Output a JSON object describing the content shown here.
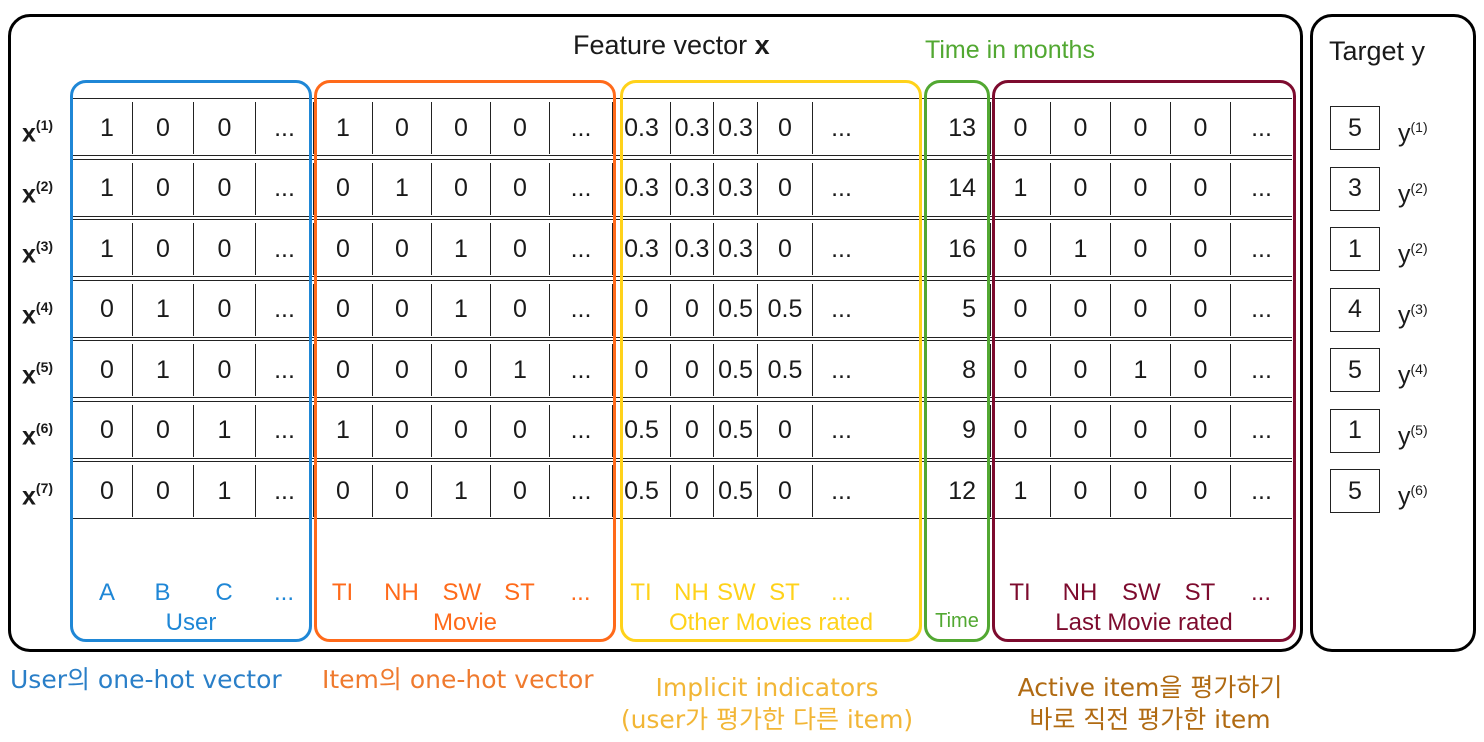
{
  "header": {
    "feature_title": "Feature vector",
    "feature_symbol": "x",
    "time_title": "Time in months",
    "target_title": "Target y"
  },
  "colors": {
    "user": "#1f87d6",
    "movie": "#ff6a1a",
    "other": "#ffd21a",
    "time": "#52a832",
    "last": "#7d0b2e",
    "caption_user": "#2a7fc8",
    "caption_item": "#ef7a2e",
    "caption_implicit": "#f2b636",
    "caption_active": "#b06a12"
  },
  "rows": [
    {
      "label": "x",
      "sup": "(1)",
      "user": [
        "1",
        "0",
        "0",
        "..."
      ],
      "movie": [
        "1",
        "0",
        "0",
        "0",
        "..."
      ],
      "other": [
        "0.3",
        "0.3",
        "0.3",
        "0",
        "..."
      ],
      "time": "13",
      "last": [
        "0",
        "0",
        "0",
        "0",
        "..."
      ],
      "target": "5",
      "ylabel": "y",
      "ysup": "(1)"
    },
    {
      "label": "x",
      "sup": "(2)",
      "user": [
        "1",
        "0",
        "0",
        "..."
      ],
      "movie": [
        "0",
        "1",
        "0",
        "0",
        "..."
      ],
      "other": [
        "0.3",
        "0.3",
        "0.3",
        "0",
        "..."
      ],
      "time": "14",
      "last": [
        "1",
        "0",
        "0",
        "0",
        "..."
      ],
      "target": "3",
      "ylabel": "y",
      "ysup": "(2)"
    },
    {
      "label": "x",
      "sup": "(3)",
      "user": [
        "1",
        "0",
        "0",
        "..."
      ],
      "movie": [
        "0",
        "0",
        "1",
        "0",
        "..."
      ],
      "other": [
        "0.3",
        "0.3",
        "0.3",
        "0",
        "..."
      ],
      "time": "16",
      "last": [
        "0",
        "1",
        "0",
        "0",
        "..."
      ],
      "target": "1",
      "ylabel": "y",
      "ysup": "(2)"
    },
    {
      "label": "x",
      "sup": "(4)",
      "user": [
        "0",
        "1",
        "0",
        "..."
      ],
      "movie": [
        "0",
        "0",
        "1",
        "0",
        "..."
      ],
      "other": [
        "0",
        "0",
        "0.5",
        "0.5",
        "..."
      ],
      "time": "5",
      "last": [
        "0",
        "0",
        "0",
        "0",
        "..."
      ],
      "target": "4",
      "ylabel": "y",
      "ysup": "(3)"
    },
    {
      "label": "x",
      "sup": "(5)",
      "user": [
        "0",
        "1",
        "0",
        "..."
      ],
      "movie": [
        "0",
        "0",
        "0",
        "1",
        "..."
      ],
      "other": [
        "0",
        "0",
        "0.5",
        "0.5",
        "..."
      ],
      "time": "8",
      "last": [
        "0",
        "0",
        "1",
        "0",
        "..."
      ],
      "target": "5",
      "ylabel": "y",
      "ysup": "(4)"
    },
    {
      "label": "x",
      "sup": "(6)",
      "user": [
        "0",
        "0",
        "1",
        "..."
      ],
      "movie": [
        "1",
        "0",
        "0",
        "0",
        "..."
      ],
      "other": [
        "0.5",
        "0",
        "0.5",
        "0",
        "..."
      ],
      "time": "9",
      "last": [
        "0",
        "0",
        "0",
        "0",
        "..."
      ],
      "target": "1",
      "ylabel": "y",
      "ysup": "(5)"
    },
    {
      "label": "x",
      "sup": "(7)",
      "user": [
        "0",
        "0",
        "1",
        "..."
      ],
      "movie": [
        "0",
        "0",
        "1",
        "0",
        "..."
      ],
      "other": [
        "0.5",
        "0",
        "0.5",
        "0",
        "..."
      ],
      "time": "12",
      "last": [
        "1",
        "0",
        "0",
        "0",
        "..."
      ],
      "target": "5",
      "ylabel": "y",
      "ysup": "(6)"
    }
  ],
  "groups": {
    "user": {
      "ticks": [
        "A",
        "B",
        "C",
        "..."
      ],
      "name": "User"
    },
    "movie": {
      "ticks": [
        "TI",
        "NH",
        "SW",
        "ST",
        "..."
      ],
      "name": "Movie"
    },
    "other": {
      "ticks": [
        "TI",
        "NH",
        "SW",
        "ST",
        "..."
      ],
      "name": "Other Movies rated"
    },
    "time": {
      "name": "Time"
    },
    "last": {
      "ticks": [
        "TI",
        "NH",
        "SW",
        "ST",
        "..."
      ],
      "name": "Last Movie rated"
    }
  },
  "captions": {
    "user": "User의 one-hot vector",
    "item": "Item의 one-hot vector",
    "implicit_line1": "Implicit indicators",
    "implicit_line2": "(user가 평가한 다른 item)",
    "active_line1": "Active item을 평가하기",
    "active_line2": "바로 직전 평가한 item"
  }
}
